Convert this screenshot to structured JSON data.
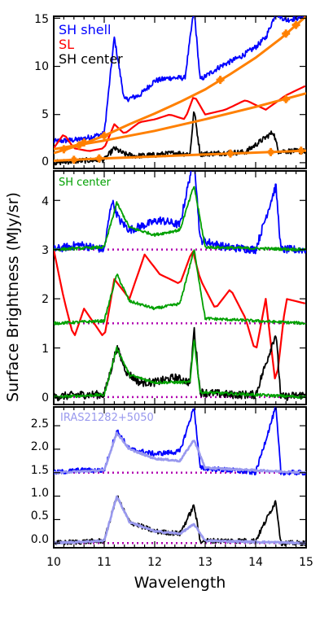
{
  "chart_data": {
    "type": "line",
    "x_range": [
      10,
      15
    ],
    "xlabel": "Wavelength",
    "ylabel": "Surface Brightness (MJy/sr)",
    "x_ticks": [
      "10",
      "11",
      "12",
      "13",
      "14",
      "15"
    ],
    "colors": {
      "sh_shell": "#0000ff",
      "sl": "#ff0000",
      "sh_center": "#000000",
      "sh_center_scaled": "#00a000",
      "continuum_fit": "#ff8000",
      "baseline": "#b000b0",
      "iras": "#9999ee"
    },
    "panels": [
      {
        "ylim": [
          -0.6,
          15.2
        ],
        "y_ticks": [
          "0",
          "5",
          "10",
          "15"
        ],
        "legend": [
          "SH shell",
          "SL",
          "SH center"
        ],
        "series": [
          {
            "name": "SH shell",
            "color": "#0000ff",
            "anchors": [
              [
                10.0,
                2.2
              ],
              [
                10.5,
                2.4
              ],
              [
                11.0,
                3.0
              ],
              [
                11.2,
                13.0
              ],
              [
                11.4,
                6.5
              ],
              [
                11.7,
                7.0
              ],
              [
                12.0,
                8.5
              ],
              [
                12.3,
                8.8
              ],
              [
                12.6,
                8.8
              ],
              [
                12.78,
                16.0
              ],
              [
                12.9,
                8.6
              ],
              [
                13.3,
                10.0
              ],
              [
                13.7,
                11.0
              ],
              [
                14.0,
                12.0
              ],
              [
                14.2,
                13.0
              ],
              [
                14.4,
                15.5
              ],
              [
                14.6,
                14.8
              ],
              [
                15.0,
                15.2
              ]
            ]
          },
          {
            "name": "SL",
            "color": "#ff0000",
            "anchors": [
              [
                10.0,
                1.5
              ],
              [
                10.2,
                3.0
              ],
              [
                10.4,
                1.5
              ],
              [
                10.7,
                1.2
              ],
              [
                11.0,
                1.5
              ],
              [
                11.2,
                4.0
              ],
              [
                11.4,
                3.0
              ],
              [
                11.7,
                4.2
              ],
              [
                12.0,
                4.5
              ],
              [
                12.3,
                5.0
              ],
              [
                12.6,
                4.5
              ],
              [
                12.78,
                7.0
              ],
              [
                13.0,
                5.0
              ],
              [
                13.4,
                5.5
              ],
              [
                13.8,
                6.5
              ],
              [
                14.2,
                5.5
              ],
              [
                14.6,
                7.0
              ],
              [
                15.0,
                8.0
              ]
            ]
          },
          {
            "name": "SH center",
            "color": "#000000",
            "anchors": [
              [
                10.0,
                0.0
              ],
              [
                10.5,
                0.2
              ],
              [
                11.0,
                0.3
              ],
              [
                11.2,
                1.5
              ],
              [
                11.4,
                0.9
              ],
              [
                11.6,
                0.7
              ],
              [
                12.0,
                0.8
              ],
              [
                12.4,
                1.0
              ],
              [
                12.7,
                0.9
              ],
              [
                12.78,
                5.5
              ],
              [
                12.9,
                0.9
              ],
              [
                13.3,
                1.0
              ],
              [
                13.8,
                1.1
              ],
              [
                14.35,
                3.2
              ],
              [
                14.45,
                1.2
              ],
              [
                15.0,
                1.2
              ]
            ]
          }
        ],
        "fits": [
          {
            "points": [
              [
                10.0,
                1.0
              ],
              [
                10.5,
                1.8
              ],
              [
                11.0,
                2.8
              ],
              [
                11.5,
                4.0
              ],
              [
                12.0,
                5.1
              ],
              [
                12.5,
                6.3
              ],
              [
                13.0,
                7.6
              ],
              [
                13.5,
                9.2
              ],
              [
                14.0,
                10.9
              ],
              [
                14.5,
                12.9
              ],
              [
                15.0,
                15.2
              ]
            ]
          },
          {
            "points": [
              [
                10.0,
                1.4
              ],
              [
                11.0,
                2.3
              ],
              [
                12.0,
                3.3
              ],
              [
                13.0,
                4.5
              ],
              [
                14.0,
                5.8
              ],
              [
                15.0,
                7.2
              ]
            ]
          },
          {
            "points": [
              [
                10.0,
                0.2
              ],
              [
                11.0,
                0.45
              ],
              [
                12.0,
                0.65
              ],
              [
                13.0,
                0.85
              ],
              [
                14.0,
                1.05
              ],
              [
                15.0,
                1.25
              ]
            ]
          }
        ],
        "fit_markers": [
          [
            10.2,
            1.4
          ],
          [
            10.6,
            2.1
          ],
          [
            11.0,
            2.8
          ],
          [
            13.3,
            8.6
          ],
          [
            14.6,
            13.4
          ],
          [
            14.8,
            14.3
          ],
          [
            10.4,
            0.3
          ],
          [
            10.9,
            0.45
          ],
          [
            13.5,
            0.95
          ],
          [
            14.3,
            1.1
          ],
          [
            14.9,
            1.25
          ],
          [
            14.6,
            6.6
          ],
          [
            10.5,
            1.8
          ]
        ]
      },
      {
        "ylim": [
          -0.15,
          4.6
        ],
        "y_ticks": [
          "0",
          "1",
          "2",
          "3",
          "4"
        ],
        "legend": [
          "SH center"
        ],
        "baselines": [
          0.0,
          1.5,
          3.0
        ],
        "series": [
          {
            "name": "SH shell",
            "color": "#0000ff",
            "anchors": [
              [
                10.0,
                3.0
              ],
              [
                10.5,
                3.1
              ],
              [
                11.0,
                3.0
              ],
              [
                11.15,
                4.0
              ],
              [
                11.3,
                3.6
              ],
              [
                11.5,
                3.4
              ],
              [
                11.8,
                3.5
              ],
              [
                12.1,
                3.6
              ],
              [
                12.5,
                3.5
              ],
              [
                12.78,
                4.9
              ],
              [
                12.9,
                3.2
              ],
              [
                13.4,
                3.05
              ],
              [
                14.0,
                3.0
              ],
              [
                14.4,
                4.3
              ],
              [
                14.5,
                3.0
              ],
              [
                15.0,
                3.0
              ]
            ]
          },
          {
            "name": "SL",
            "color": "#ff0000",
            "anchors": [
              [
                10.0,
                3.0
              ],
              [
                10.2,
                2.0
              ],
              [
                10.4,
                1.2
              ],
              [
                10.6,
                1.8
              ],
              [
                10.8,
                1.5
              ],
              [
                11.0,
                1.2
              ],
              [
                11.2,
                2.4
              ],
              [
                11.5,
                2.0
              ],
              [
                11.8,
                2.9
              ],
              [
                12.1,
                2.5
              ],
              [
                12.5,
                2.3
              ],
              [
                12.75,
                3.0
              ],
              [
                12.9,
                2.4
              ],
              [
                13.2,
                1.8
              ],
              [
                13.5,
                2.2
              ],
              [
                13.8,
                1.6
              ],
              [
                14.0,
                0.9
              ],
              [
                14.2,
                2.0
              ],
              [
                14.4,
                0.2
              ],
              [
                14.6,
                2.0
              ],
              [
                15.0,
                1.9
              ]
            ]
          },
          {
            "name": "SH center",
            "color": "#000000",
            "anchors": [
              [
                10.0,
                0.0
              ],
              [
                10.5,
                0.05
              ],
              [
                11.0,
                0.05
              ],
              [
                11.25,
                1.0
              ],
              [
                11.45,
                0.5
              ],
              [
                11.7,
                0.3
              ],
              [
                12.0,
                0.3
              ],
              [
                12.4,
                0.4
              ],
              [
                12.7,
                0.3
              ],
              [
                12.78,
                1.4
              ],
              [
                12.9,
                0.1
              ],
              [
                13.5,
                0.05
              ],
              [
                14.0,
                0.05
              ],
              [
                14.4,
                1.3
              ],
              [
                14.5,
                0.0
              ],
              [
                15.0,
                0.05
              ]
            ]
          },
          {
            "name": "SH center (scaled)",
            "color": "#00a000",
            "anchors": [
              [
                10.0,
                0.0
              ],
              [
                11.0,
                0.05
              ],
              [
                11.25,
                1.0
              ],
              [
                11.5,
                0.45
              ],
              [
                12.0,
                0.3
              ],
              [
                12.7,
                0.3
              ],
              [
                12.78,
                1.2
              ],
              [
                12.9,
                0.1
              ],
              [
                15.0,
                0.0
              ]
            ]
          },
          {
            "name": "SH center (scaled) on SL",
            "color": "#00a000",
            "anchors": [
              [
                10.0,
                1.5
              ],
              [
                11.0,
                1.55
              ],
              [
                11.25,
                2.5
              ],
              [
                11.5,
                1.95
              ],
              [
                12.0,
                1.8
              ],
              [
                12.5,
                1.9
              ],
              [
                12.78,
                3.0
              ],
              [
                13.0,
                1.6
              ],
              [
                15.0,
                1.5
              ]
            ]
          },
          {
            "name": "SH center (scaled) on SH shell",
            "color": "#00a000",
            "anchors": [
              [
                10.0,
                3.0
              ],
              [
                11.0,
                3.05
              ],
              [
                11.25,
                3.95
              ],
              [
                11.5,
                3.45
              ],
              [
                12.0,
                3.3
              ],
              [
                12.5,
                3.4
              ],
              [
                12.78,
                4.3
              ],
              [
                13.0,
                3.05
              ],
              [
                15.0,
                3.0
              ]
            ]
          }
        ]
      },
      {
        "ylim": [
          -0.1,
          2.9
        ],
        "y_ticks": [
          "0.0",
          "0.5",
          "1.0",
          "1.5",
          "2.0",
          "2.5"
        ],
        "legend": [
          "IRAS21282+5050"
        ],
        "baselines": [
          0.0,
          1.5
        ],
        "series": [
          {
            "name": "SH shell",
            "color": "#0000ff",
            "anchors": [
              [
                10.0,
                1.5
              ],
              [
                10.5,
                1.55
              ],
              [
                11.0,
                1.55
              ],
              [
                11.25,
                2.4
              ],
              [
                11.5,
                2.0
              ],
              [
                12.0,
                1.9
              ],
              [
                12.5,
                1.95
              ],
              [
                12.78,
                2.9
              ],
              [
                12.9,
                1.6
              ],
              [
                13.5,
                1.55
              ],
              [
                14.0,
                1.5
              ],
              [
                14.4,
                2.9
              ],
              [
                14.5,
                1.5
              ],
              [
                15.0,
                1.5
              ]
            ]
          },
          {
            "name": "SH center",
            "color": "#000000",
            "anchors": [
              [
                10.0,
                0.0
              ],
              [
                11.0,
                0.05
              ],
              [
                11.25,
                1.0
              ],
              [
                11.5,
                0.45
              ],
              [
                12.0,
                0.25
              ],
              [
                12.5,
                0.2
              ],
              [
                12.78,
                0.8
              ],
              [
                12.9,
                0.05
              ],
              [
                14.0,
                0.05
              ],
              [
                14.4,
                0.9
              ],
              [
                14.5,
                0.0
              ],
              [
                15.0,
                0.0
              ]
            ]
          },
          {
            "name": "IRAS21282+5050 on SH shell",
            "color": "#9999ee",
            "anchors": [
              [
                10.0,
                1.5
              ],
              [
                11.0,
                1.55
              ],
              [
                11.25,
                2.35
              ],
              [
                11.5,
                2.0
              ],
              [
                12.0,
                1.8
              ],
              [
                12.5,
                1.75
              ],
              [
                12.78,
                2.2
              ],
              [
                13.0,
                1.6
              ],
              [
                15.0,
                1.5
              ]
            ]
          },
          {
            "name": "IRAS21282+5050",
            "color": "#9999ee",
            "anchors": [
              [
                10.0,
                0.0
              ],
              [
                11.0,
                0.05
              ],
              [
                11.25,
                1.0
              ],
              [
                11.5,
                0.45
              ],
              [
                12.0,
                0.25
              ],
              [
                12.5,
                0.2
              ],
              [
                12.78,
                0.4
              ],
              [
                13.0,
                0.05
              ],
              [
                15.0,
                0.0
              ]
            ]
          }
        ]
      }
    ]
  }
}
